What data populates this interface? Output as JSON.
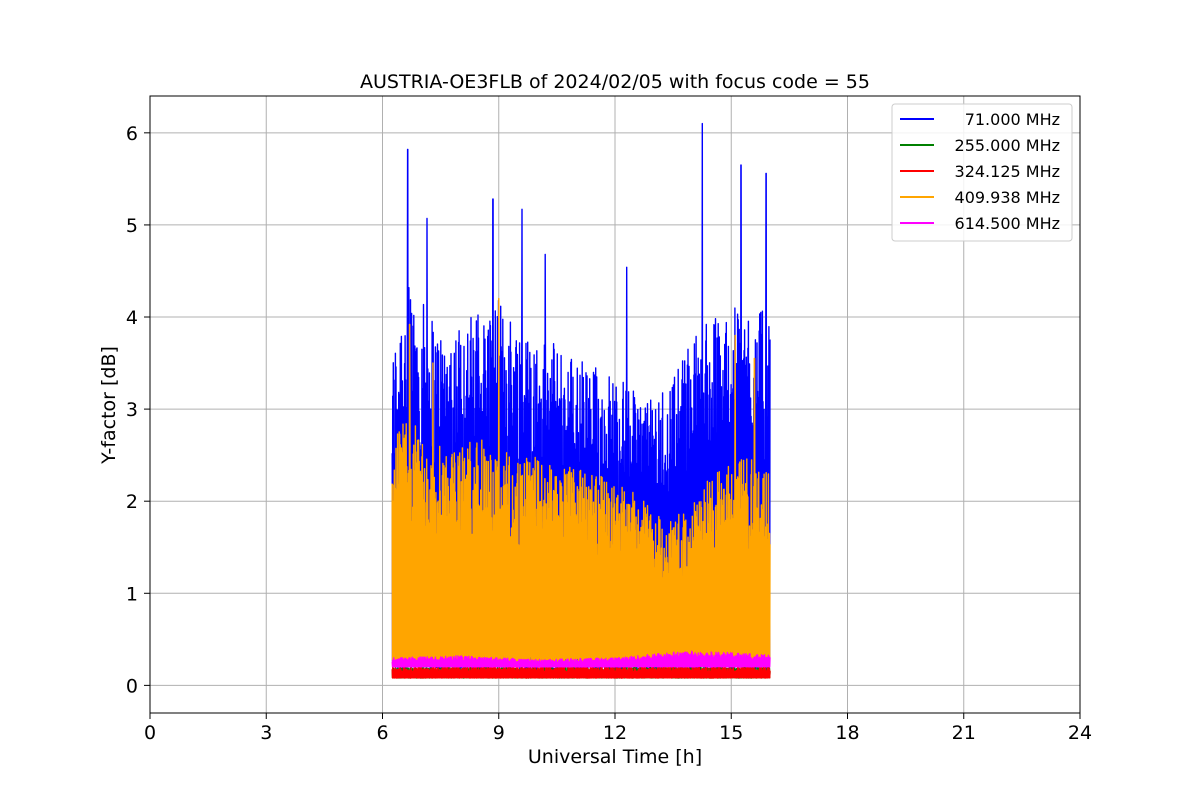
{
  "chart_data": {
    "type": "line",
    "title": "AUSTRIA-OE3FLB of 2024/02/05 with focus code = 55",
    "xlabel": "Universal Time [h]",
    "ylabel": "Y-factor [dB]",
    "xlim": [
      0,
      24
    ],
    "ylim": [
      -0.3,
      6.4
    ],
    "x_ticks": [
      0,
      3,
      6,
      9,
      12,
      15,
      18,
      21,
      24
    ],
    "x_tick_labels": [
      "0",
      "3",
      "6",
      "9",
      "12",
      "15",
      "18",
      "21",
      "24"
    ],
    "y_ticks": [
      0,
      1,
      2,
      3,
      4,
      5,
      6
    ],
    "y_tick_labels": [
      "0",
      "1",
      "2",
      "3",
      "4",
      "5",
      "6"
    ],
    "grid": true,
    "legend_position": "top-right",
    "data_time_range": [
      6.25,
      16.0
    ],
    "series": [
      {
        "name": "71.000 MHz",
        "color": "#0000ff",
        "baseline": 0.15,
        "envelope": [
          [
            6.25,
            3.6
          ],
          [
            6.5,
            4.4
          ],
          [
            7.0,
            4.2
          ],
          [
            7.5,
            3.9
          ],
          [
            8.0,
            4.0
          ],
          [
            8.5,
            4.1
          ],
          [
            9.0,
            4.2
          ],
          [
            9.5,
            4.0
          ],
          [
            10.0,
            3.8
          ],
          [
            10.5,
            3.7
          ],
          [
            11.0,
            3.6
          ],
          [
            11.5,
            3.5
          ],
          [
            12.0,
            3.4
          ],
          [
            12.5,
            3.2
          ],
          [
            13.0,
            3.1
          ],
          [
            13.5,
            3.4
          ],
          [
            14.0,
            3.8
          ],
          [
            14.5,
            4.0
          ],
          [
            15.0,
            4.1
          ],
          [
            15.5,
            4.2
          ],
          [
            16.0,
            4.0
          ]
        ],
        "peaks": [
          [
            6.65,
            5.82
          ],
          [
            7.15,
            5.07
          ],
          [
            8.85,
            5.28
          ],
          [
            9.6,
            5.17
          ],
          [
            10.2,
            4.68
          ],
          [
            12.3,
            4.54
          ],
          [
            14.25,
            6.1
          ],
          [
            15.25,
            5.65
          ],
          [
            15.9,
            5.56
          ]
        ]
      },
      {
        "name": "255.000 MHz",
        "color": "#008000",
        "baseline": 0.08,
        "envelope": [
          [
            6.25,
            0.2
          ],
          [
            16.0,
            0.2
          ]
        ],
        "peaks": []
      },
      {
        "name": "324.125 MHz",
        "color": "#ff0000",
        "baseline": 0.08,
        "envelope": [
          [
            6.25,
            0.2
          ],
          [
            16.0,
            0.2
          ]
        ],
        "peaks": []
      },
      {
        "name": "409.938 MHz",
        "color": "#ffa500",
        "baseline": 0.2,
        "envelope": [
          [
            6.25,
            2.7
          ],
          [
            6.5,
            2.9
          ],
          [
            7.0,
            2.8
          ],
          [
            7.5,
            2.7
          ],
          [
            8.0,
            2.6
          ],
          [
            8.5,
            2.7
          ],
          [
            9.0,
            2.6
          ],
          [
            9.5,
            2.5
          ],
          [
            10.0,
            2.5
          ],
          [
            10.5,
            2.4
          ],
          [
            11.0,
            2.4
          ],
          [
            11.5,
            2.3
          ],
          [
            12.0,
            2.2
          ],
          [
            12.5,
            2.1
          ],
          [
            13.0,
            1.9
          ],
          [
            13.5,
            1.8
          ],
          [
            14.0,
            2.0
          ],
          [
            14.5,
            2.3
          ],
          [
            15.0,
            2.4
          ],
          [
            15.5,
            2.5
          ],
          [
            16.0,
            2.3
          ]
        ],
        "peaks": [
          [
            6.7,
            3.92
          ],
          [
            7.3,
            3.5
          ],
          [
            9.0,
            4.2
          ],
          [
            15.1,
            3.8
          ],
          [
            15.6,
            3.55
          ]
        ]
      },
      {
        "name": "614.500 MHz",
        "color": "#ff00ff",
        "baseline": 0.2,
        "envelope": [
          [
            6.25,
            0.3
          ],
          [
            8.0,
            0.32
          ],
          [
            10.0,
            0.28
          ],
          [
            12.0,
            0.3
          ],
          [
            14.0,
            0.38
          ],
          [
            16.0,
            0.33
          ]
        ],
        "peaks": []
      }
    ]
  }
}
